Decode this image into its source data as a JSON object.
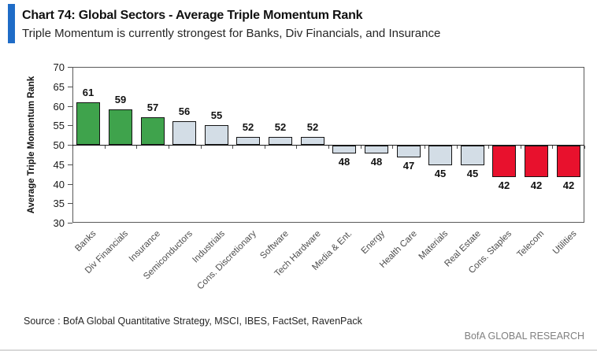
{
  "header": {
    "title": "Chart 74: Global Sectors - Average Triple Momentum Rank",
    "subtitle": "Triple Momentum is currently strongest for Banks, Div Financials, and Insurance",
    "accent_color": "#1f6cc7"
  },
  "chart_data": {
    "type": "bar",
    "title": "Chart 74: Global Sectors - Average Triple Momentum Rank",
    "xlabel": "",
    "ylabel": "Average Triple Momentum Rank",
    "ylim": [
      30,
      70
    ],
    "ytick_step": 5,
    "baseline": 50,
    "grid": false,
    "legend": "none",
    "categories": [
      "Banks",
      "Div Financials",
      "Insurance",
      "Semiconductors",
      "Industrials",
      "Cons. Discretionary",
      "Software",
      "Tech Hardware",
      "Media & Ent.",
      "Energy",
      "Health Care",
      "Materials",
      "Real Estate",
      "Cons. Staples",
      "Telecom",
      "Utilities"
    ],
    "values": [
      61,
      59,
      57,
      56,
      55,
      52,
      52,
      52,
      48,
      48,
      47,
      45,
      45,
      42,
      42,
      42
    ],
    "bar_color_keys": [
      "green",
      "green",
      "green",
      "blue",
      "blue",
      "blue",
      "blue",
      "blue",
      "blue",
      "blue",
      "blue",
      "blue",
      "blue",
      "red",
      "red",
      "red"
    ],
    "palette": {
      "green": "#3fa34c",
      "blue": "#d3dde6",
      "red": "#e8112d",
      "bar_border": "#141414"
    }
  },
  "footer": {
    "source": "Source : BofA Global Quantitative Strategy, MSCI, IBES, FactSet, RavenPack",
    "brand": "BofA GLOBAL RESEARCH"
  }
}
